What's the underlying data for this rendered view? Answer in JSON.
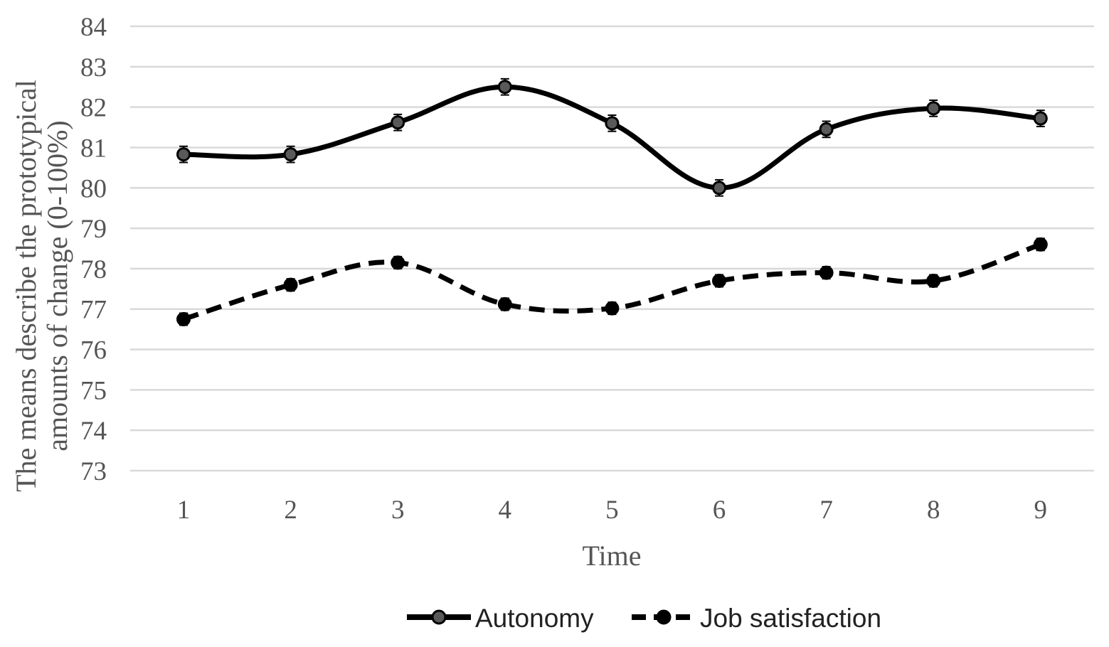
{
  "chart_data": {
    "type": "line",
    "title": "",
    "xlabel": "Time",
    "ylabel_lines": [
      "The means describe the prototypical",
      "amounts of change (0-100%)"
    ],
    "categories": [
      "1",
      "2",
      "3",
      "4",
      "5",
      "6",
      "7",
      "8",
      "9"
    ],
    "yticks": [
      "73",
      "74",
      "75",
      "76",
      "77",
      "78",
      "79",
      "80",
      "81",
      "82",
      "83",
      "84"
    ],
    "ylim": [
      73,
      84
    ],
    "grid": true,
    "legend_position": "bottom",
    "error_bars": true,
    "series": [
      {
        "name": "Autonomy",
        "values": [
          80.83,
          80.83,
          81.62,
          82.5,
          81.6,
          80.0,
          81.45,
          81.97,
          81.72
        ],
        "error": [
          0.2,
          0.2,
          0.2,
          0.2,
          0.2,
          0.2,
          0.2,
          0.2,
          0.2
        ],
        "line_style": "solid",
        "marker": "circle",
        "marker_fill": "#595959",
        "color": "#000000"
      },
      {
        "name": "Job satisfaction",
        "values": [
          76.75,
          77.6,
          78.15,
          77.12,
          77.02,
          77.7,
          77.9,
          77.7,
          78.6
        ],
        "error": [
          0.15,
          0.15,
          0.15,
          0.15,
          0.15,
          0.15,
          0.15,
          0.15,
          0.15
        ],
        "line_style": "dashed",
        "marker": "circle",
        "marker_fill": "#000000",
        "color": "#000000"
      }
    ]
  }
}
